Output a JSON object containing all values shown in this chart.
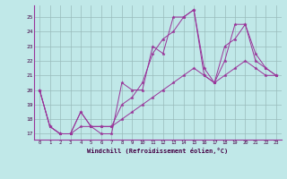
{
  "xlabel": "Windchill (Refroidissement éolien,°C)",
  "background_color": "#c0e8e8",
  "line_color": "#993399",
  "grid_color": "#99bbbb",
  "xlim": [
    -0.5,
    23.5
  ],
  "ylim": [
    16.6,
    25.8
  ],
  "yticks": [
    17,
    18,
    19,
    20,
    21,
    22,
    23,
    24,
    25
  ],
  "xticks": [
    0,
    1,
    2,
    3,
    4,
    5,
    6,
    7,
    8,
    9,
    10,
    11,
    12,
    13,
    14,
    15,
    16,
    17,
    18,
    19,
    20,
    21,
    22,
    23
  ],
  "series": [
    {
      "x": [
        0,
        1,
        2,
        3,
        4,
        5,
        6,
        7,
        8,
        9,
        10,
        11,
        12,
        13,
        14,
        15,
        16,
        17,
        18,
        19,
        20,
        21,
        22,
        23
      ],
      "y": [
        20.0,
        17.5,
        17.0,
        17.0,
        18.5,
        17.5,
        17.0,
        17.0,
        20.5,
        20.0,
        20.0,
        23.0,
        22.5,
        25.0,
        25.0,
        25.5,
        21.0,
        20.5,
        22.0,
        24.5,
        24.5,
        22.0,
        21.5,
        21.0
      ]
    },
    {
      "x": [
        0,
        1,
        2,
        3,
        4,
        5,
        6,
        7,
        8,
        9,
        10,
        11,
        12,
        13,
        14,
        15,
        16,
        17,
        18,
        19,
        20,
        21,
        22,
        23
      ],
      "y": [
        20.0,
        17.5,
        17.0,
        17.0,
        18.5,
        17.5,
        17.5,
        17.5,
        19.0,
        19.5,
        20.5,
        22.5,
        23.5,
        24.0,
        25.0,
        25.5,
        21.5,
        20.5,
        23.0,
        23.5,
        24.5,
        22.5,
        21.5,
        21.0
      ]
    },
    {
      "x": [
        0,
        1,
        2,
        3,
        4,
        5,
        6,
        7,
        8,
        9,
        10,
        11,
        12,
        13,
        14,
        15,
        16,
        17,
        18,
        19,
        20,
        21,
        22,
        23
      ],
      "y": [
        20.0,
        17.5,
        17.0,
        17.0,
        17.5,
        17.5,
        17.5,
        17.5,
        18.0,
        18.5,
        19.0,
        19.5,
        20.0,
        20.5,
        21.0,
        21.5,
        21.0,
        20.5,
        21.0,
        21.5,
        22.0,
        21.5,
        21.0,
        21.0
      ]
    }
  ]
}
